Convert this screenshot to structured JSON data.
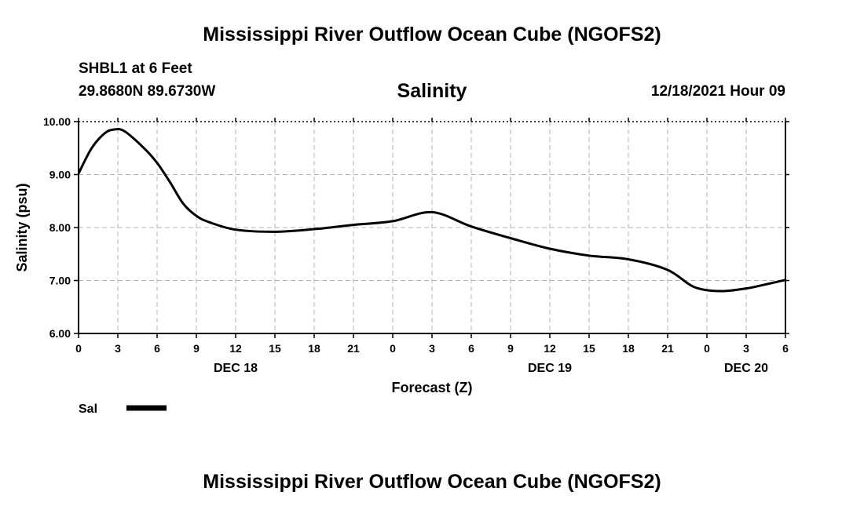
{
  "page_title": "Mississippi River Outflow Ocean Cube (NGOFS2)",
  "page_title_bottom": "Mississippi River Outflow Ocean Cube (NGOFS2)",
  "station": {
    "name": "SHBL1 at 6 Feet",
    "coords": "29.8680N  89.6730W",
    "timestamp": "12/18/2021 Hour 09"
  },
  "colors": {
    "line": "#000000",
    "grid": "#b4b4b4"
  },
  "chart_data": {
    "type": "line",
    "title": "Salinity",
    "xlabel": "Forecast (Z)",
    "ylabel": "Salinity (psu)",
    "ylim": [
      6.0,
      10.0
    ],
    "y_ticks": [
      "6.00",
      "7.00",
      "8.00",
      "9.00",
      "10.00"
    ],
    "x_range_hours": [
      0,
      54
    ],
    "x_tick_labels": [
      "0",
      "3",
      "6",
      "9",
      "12",
      "15",
      "18",
      "21",
      "0",
      "3",
      "6",
      "9",
      "12",
      "15",
      "18",
      "21",
      "0",
      "3",
      "6"
    ],
    "day_labels": [
      {
        "label": "DEC 18",
        "hour": 12
      },
      {
        "label": "DEC 19",
        "hour": 36
      },
      {
        "label": "DEC 20",
        "hour": 51
      }
    ],
    "grid": true,
    "legend": [
      {
        "label": "Sal",
        "series": "Sal"
      }
    ],
    "series": [
      {
        "name": "Sal",
        "x": [
          0,
          1,
          2,
          2.7,
          3.5,
          5,
          6,
          7,
          8,
          9,
          10,
          12,
          15,
          18,
          21,
          24,
          27,
          30,
          33,
          36,
          39,
          42,
          45,
          47,
          49,
          51,
          52,
          54
        ],
        "values": [
          9.02,
          9.5,
          9.78,
          9.85,
          9.82,
          9.5,
          9.22,
          8.85,
          8.45,
          8.22,
          8.1,
          7.96,
          7.92,
          7.97,
          8.05,
          8.12,
          8.29,
          8.02,
          7.8,
          7.6,
          7.47,
          7.4,
          7.2,
          6.88,
          6.8,
          6.85,
          6.9,
          7.01
        ]
      }
    ]
  }
}
